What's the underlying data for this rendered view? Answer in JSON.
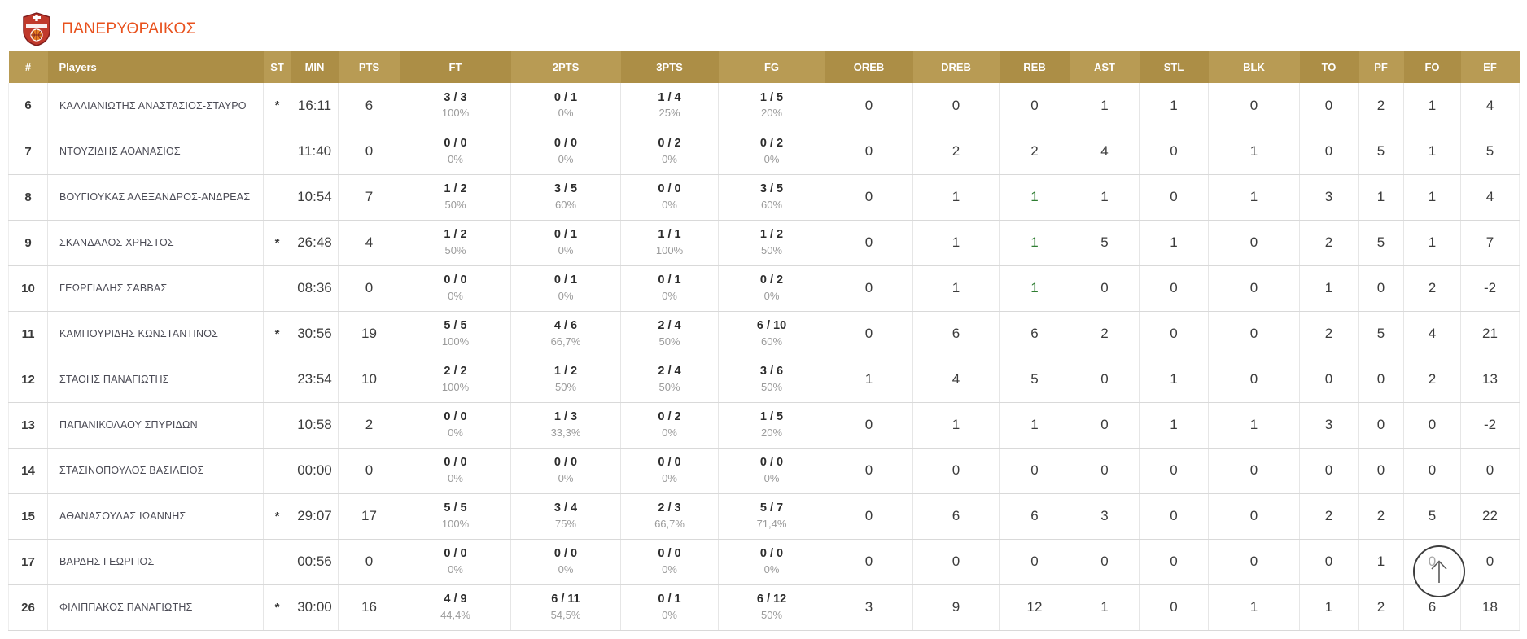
{
  "team": {
    "name": "ΠΑΝΕΡΥΘΡΑΙΚΟΣ"
  },
  "colors": {
    "team_name": "#e8511d",
    "header_gold_light": "#b89b54",
    "header_gold_dark": "#ac8e46",
    "logo_red": "#c0392b",
    "stat_text": "#3c3c3c",
    "percent_text": "#9b9b9b",
    "highlight_green": "#2e7d32"
  },
  "icons": {
    "scroll_top": "up-arrow-icon",
    "team_logo": "red-shield-basketball-crest"
  },
  "table": {
    "columns": [
      "#",
      "Players",
      "ST",
      "MIN",
      "PTS",
      "FT",
      "2PTS",
      "3PTS",
      "FG",
      "OREB",
      "DREB",
      "REB",
      "AST",
      "STL",
      "BLK",
      "TO",
      "PF",
      "FO",
      "EF"
    ],
    "rows": [
      {
        "num": "6",
        "name": "ΚΑΛΛΙΑΝΙΩΤΗΣ ΑΝΑΣΤΑΣΙΟΣ-ΣΤΑΥΡΟ",
        "st": "*",
        "min": "16:11",
        "pts": "6",
        "ft": "3 / 3",
        "ft_pct": "100%",
        "p2": "0 / 1",
        "p2_pct": "0%",
        "p3": "1 / 4",
        "p3_pct": "25%",
        "fg": "1 / 5",
        "fg_pct": "20%",
        "oreb": "0",
        "dreb": "0",
        "reb": "0",
        "reb_green": false,
        "ast": "1",
        "stl": "1",
        "blk": "0",
        "to": "0",
        "pf": "2",
        "fo": "1",
        "ef": "4"
      },
      {
        "num": "7",
        "name": "ΝΤΟΥΖΙΔΗΣ ΑΘΑΝΑΣΙΟΣ",
        "st": "",
        "min": "11:40",
        "pts": "0",
        "ft": "0 / 0",
        "ft_pct": "0%",
        "p2": "0 / 0",
        "p2_pct": "0%",
        "p3": "0 / 2",
        "p3_pct": "0%",
        "fg": "0 / 2",
        "fg_pct": "0%",
        "oreb": "0",
        "dreb": "2",
        "reb": "2",
        "reb_green": false,
        "ast": "4",
        "stl": "0",
        "blk": "1",
        "to": "0",
        "pf": "5",
        "fo": "1",
        "ef": "5"
      },
      {
        "num": "8",
        "name": "ΒΟΥΓΙΟΥΚΑΣ ΑΛΕΞΑΝΔΡΟΣ-ΑΝΔΡΕΑΣ",
        "st": "",
        "min": "10:54",
        "pts": "7",
        "ft": "1 / 2",
        "ft_pct": "50%",
        "p2": "3 / 5",
        "p2_pct": "60%",
        "p3": "0 / 0",
        "p3_pct": "0%",
        "fg": "3 / 5",
        "fg_pct": "60%",
        "oreb": "0",
        "dreb": "1",
        "reb": "1",
        "reb_green": true,
        "ast": "1",
        "stl": "0",
        "blk": "1",
        "to": "3",
        "pf": "1",
        "fo": "1",
        "ef": "4"
      },
      {
        "num": "9",
        "name": "ΣΚΑΝΔΑΛΟΣ ΧΡΗΣΤΟΣ",
        "st": "*",
        "min": "26:48",
        "pts": "4",
        "ft": "1 / 2",
        "ft_pct": "50%",
        "p2": "0 / 1",
        "p2_pct": "0%",
        "p3": "1 / 1",
        "p3_pct": "100%",
        "fg": "1 / 2",
        "fg_pct": "50%",
        "oreb": "0",
        "dreb": "1",
        "reb": "1",
        "reb_green": true,
        "ast": "5",
        "stl": "1",
        "blk": "0",
        "to": "2",
        "pf": "5",
        "fo": "1",
        "ef": "7"
      },
      {
        "num": "10",
        "name": "ΓΕΩΡΓΙΑΔΗΣ ΣΑΒΒΑΣ",
        "st": "",
        "min": "08:36",
        "pts": "0",
        "ft": "0 / 0",
        "ft_pct": "0%",
        "p2": "0 / 1",
        "p2_pct": "0%",
        "p3": "0 / 1",
        "p3_pct": "0%",
        "fg": "0 / 2",
        "fg_pct": "0%",
        "oreb": "0",
        "dreb": "1",
        "reb": "1",
        "reb_green": true,
        "ast": "0",
        "stl": "0",
        "blk": "0",
        "to": "1",
        "pf": "0",
        "fo": "2",
        "ef": "-2"
      },
      {
        "num": "11",
        "name": "ΚΑΜΠΟΥΡΙΔΗΣ ΚΩΝΣΤΑΝΤΙΝΟΣ",
        "st": "*",
        "min": "30:56",
        "pts": "19",
        "ft": "5 / 5",
        "ft_pct": "100%",
        "p2": "4 / 6",
        "p2_pct": "66,7%",
        "p3": "2 / 4",
        "p3_pct": "50%",
        "fg": "6 / 10",
        "fg_pct": "60%",
        "oreb": "0",
        "dreb": "6",
        "reb": "6",
        "reb_green": false,
        "ast": "2",
        "stl": "0",
        "blk": "0",
        "to": "2",
        "pf": "5",
        "fo": "4",
        "ef": "21"
      },
      {
        "num": "12",
        "name": "ΣΤΑΘΗΣ ΠΑΝΑΓΙΩΤΗΣ",
        "st": "",
        "min": "23:54",
        "pts": "10",
        "ft": "2 / 2",
        "ft_pct": "100%",
        "p2": "1 / 2",
        "p2_pct": "50%",
        "p3": "2 / 4",
        "p3_pct": "50%",
        "fg": "3 / 6",
        "fg_pct": "50%",
        "oreb": "1",
        "dreb": "4",
        "reb": "5",
        "reb_green": false,
        "ast": "0",
        "stl": "1",
        "blk": "0",
        "to": "0",
        "pf": "0",
        "fo": "2",
        "ef": "13"
      },
      {
        "num": "13",
        "name": "ΠΑΠΑΝΙΚΟΛΑΟΥ ΣΠΥΡΙΔΩΝ",
        "st": "",
        "min": "10:58",
        "pts": "2",
        "ft": "0 / 0",
        "ft_pct": "0%",
        "p2": "1 / 3",
        "p2_pct": "33,3%",
        "p3": "0 / 2",
        "p3_pct": "0%",
        "fg": "1 / 5",
        "fg_pct": "20%",
        "oreb": "0",
        "dreb": "1",
        "reb": "1",
        "reb_green": false,
        "ast": "0",
        "stl": "1",
        "blk": "1",
        "to": "3",
        "pf": "0",
        "fo": "0",
        "ef": "-2"
      },
      {
        "num": "14",
        "name": "ΣΤΑΣΙΝΟΠΟΥΛΟΣ ΒΑΣΙΛΕΙΟΣ",
        "st": "",
        "min": "00:00",
        "pts": "0",
        "ft": "0 / 0",
        "ft_pct": "0%",
        "p2": "0 / 0",
        "p2_pct": "0%",
        "p3": "0 / 0",
        "p3_pct": "0%",
        "fg": "0 / 0",
        "fg_pct": "0%",
        "oreb": "0",
        "dreb": "0",
        "reb": "0",
        "reb_green": false,
        "ast": "0",
        "stl": "0",
        "blk": "0",
        "to": "0",
        "pf": "0",
        "fo": "0",
        "ef": "0"
      },
      {
        "num": "15",
        "name": "ΑΘΑΝΑΣΟΥΛΑΣ ΙΩΑΝΝΗΣ",
        "st": "*",
        "min": "29:07",
        "pts": "17",
        "ft": "5 / 5",
        "ft_pct": "100%",
        "p2": "3 / 4",
        "p2_pct": "75%",
        "p3": "2 / 3",
        "p3_pct": "66,7%",
        "fg": "5 / 7",
        "fg_pct": "71,4%",
        "oreb": "0",
        "dreb": "6",
        "reb": "6",
        "reb_green": false,
        "ast": "3",
        "stl": "0",
        "blk": "0",
        "to": "2",
        "pf": "2",
        "fo": "5",
        "ef": "22"
      },
      {
        "num": "17",
        "name": "ΒΑΡΔΗΣ ΓΕΩΡΓΙΟΣ",
        "st": "",
        "min": "00:56",
        "pts": "0",
        "ft": "0 / 0",
        "ft_pct": "0%",
        "p2": "0 / 0",
        "p2_pct": "0%",
        "p3": "0 / 0",
        "p3_pct": "0%",
        "fg": "0 / 0",
        "fg_pct": "0%",
        "oreb": "0",
        "dreb": "0",
        "reb": "0",
        "reb_green": false,
        "ast": "0",
        "stl": "0",
        "blk": "0",
        "to": "0",
        "pf": "1",
        "fo": "0",
        "ef": "0"
      },
      {
        "num": "26",
        "name": "ΦΙΛΙΠΠΑΚΟΣ ΠΑΝΑΓΙΩΤΗΣ",
        "st": "*",
        "min": "30:00",
        "pts": "16",
        "ft": "4 / 9",
        "ft_pct": "44,4%",
        "p2": "6 / 11",
        "p2_pct": "54,5%",
        "p3": "0 / 1",
        "p3_pct": "0%",
        "fg": "6 / 12",
        "fg_pct": "50%",
        "oreb": "3",
        "dreb": "9",
        "reb": "12",
        "reb_green": false,
        "ast": "1",
        "stl": "0",
        "blk": "1",
        "to": "1",
        "pf": "2",
        "fo": "6",
        "ef": "18"
      }
    ]
  }
}
